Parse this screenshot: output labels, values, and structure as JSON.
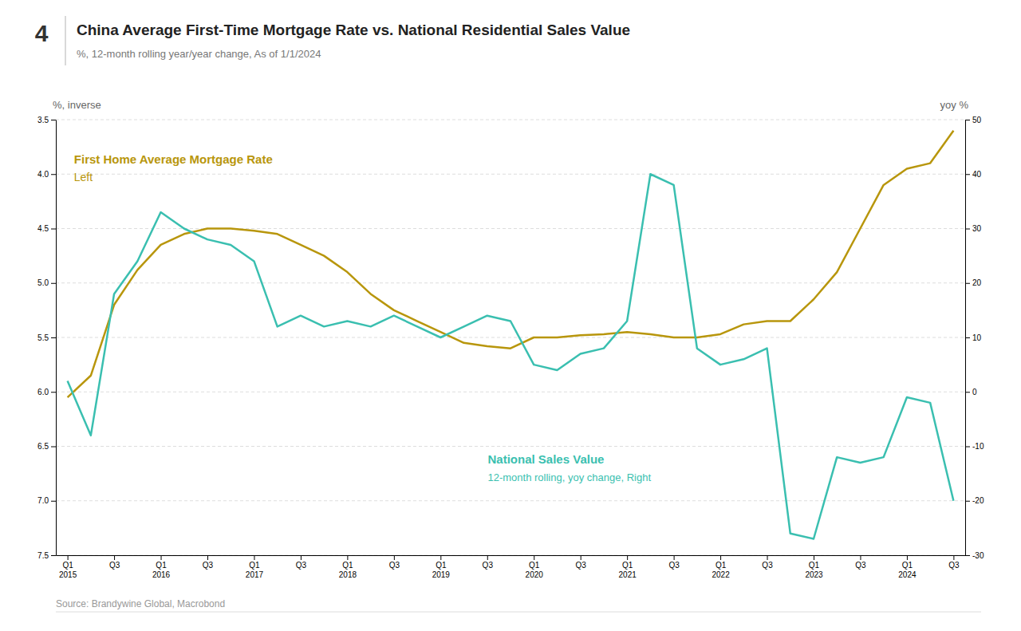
{
  "chart_data": {
    "type": "line",
    "title": "China Average First-Time Mortgage Rate vs. National Residential Sales Value",
    "subtitle": "%, 12-month rolling year/year change, As of 1/1/2024",
    "ylabel": "%, inverse",
    "y2label": "yoy %",
    "annotations": [
      "4",
      "Left",
      "12-month rolling, yoy change, Right",
      "Source: Brandywine Global, Macrobond"
    ],
    "categories": [
      "Q1\n2015",
      null,
      "Q3",
      null,
      "Q1\n2016",
      null,
      "Q3",
      null,
      "Q1\n2017",
      null,
      "Q3",
      null,
      "Q1\n2018",
      null,
      "Q3",
      null,
      "Q1\n2019",
      null,
      "Q3",
      null,
      "Q1\n2020",
      null,
      "Q3",
      null,
      "Q1\n2021",
      null,
      "Q3",
      null,
      "Q1\n2022",
      null,
      "Q3",
      null,
      "Q1\n2023",
      null,
      "Q3",
      null,
      "Q1\n2024",
      null,
      "Q3"
    ],
    "ylim": [
      7.5,
      3.5
    ],
    "yticks": [
      3.5,
      {
        "value": 4,
        "label": "4.0"
      },
      4.5,
      {
        "value": 5,
        "label": "5.0"
      },
      5.5,
      {
        "value": 6,
        "label": "6.0"
      },
      6.5,
      {
        "value": 7,
        "label": "7.0"
      },
      7.5
    ],
    "y2lim": [
      -30,
      50
    ],
    "y2ticks": [
      -30,
      -20,
      -10,
      0,
      10,
      20,
      30,
      40,
      50
    ],
    "grid": true,
    "series": [
      {
        "name": "First Home Average Mortgage Rate",
        "color": "#B8960C",
        "axis": "y",
        "values": [
          6.05,
          5.85,
          5.2,
          4.88,
          4.65,
          4.55,
          4.5,
          4.5,
          4.52,
          4.55,
          4.65,
          4.75,
          4.9,
          5.1,
          5.25,
          5.35,
          5.45,
          5.55,
          5.58,
          5.6,
          5.5,
          5.5,
          5.48,
          5.47,
          5.45,
          5.47,
          5.5,
          5.5,
          5.47,
          5.38,
          5.35,
          5.35,
          5.15,
          4.9,
          4.5,
          4.1,
          3.95,
          3.9,
          3.6
        ]
      },
      {
        "name": "National Sales Value",
        "color": "#3ABFB0",
        "axis": "y2",
        "values": [
          2,
          -8,
          18,
          24,
          33,
          30,
          28,
          27,
          24,
          12,
          14,
          12,
          13,
          12,
          14,
          12,
          10,
          12,
          14,
          13,
          5,
          4,
          7,
          8,
          13,
          40,
          38,
          8,
          5,
          6,
          8,
          -26,
          -27,
          -12,
          -13,
          -12,
          -1,
          -2,
          -20
        ]
      }
    ]
  }
}
